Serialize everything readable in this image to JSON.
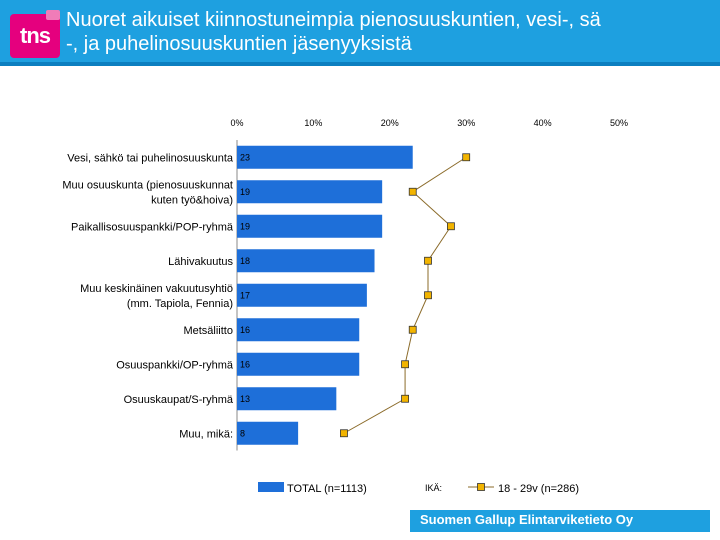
{
  "header": {
    "logo_text": "tns",
    "title": "Nuoret aikuiset kiinnostuneimpia pienosuuskuntien, vesi-, sä\n-, ja puhelinosuuskuntien jäsenyyksistä"
  },
  "footer": {
    "text": "Suomen Gallup Elintarviketieto Oy"
  },
  "colors": {
    "bar": "#1e6fd9",
    "line_marker": "#f2b400",
    "line": "#8b6b2a",
    "header": "#1ea0e0"
  },
  "chart_data": {
    "type": "bar",
    "orientation": "horizontal",
    "title": "",
    "xlabel": "",
    "ylabel": "",
    "xlim": [
      0,
      50
    ],
    "x_ticks": [
      "0%",
      "10%",
      "20%",
      "30%",
      "40%",
      "50%"
    ],
    "categories": [
      "Vesi, sähkö tai puhelinosuuskunta",
      "Muu osuuskunta (pienosuuskunnat kuten työ&hoiva)",
      "Paikallisosuuspankki/POP-ryhmä",
      "Lähivakuutus",
      "Muu keskinäinen vakuutusyhtiö (mm. Tapiola, Fennia)",
      "Metsäliitto",
      "Osuuspankki/OP-ryhmä",
      "Osuuskaupat/S-ryhmä",
      "Muu, mikä:"
    ],
    "category_lines": [
      [
        "Vesi, sähkö tai puhelinosuuskunta"
      ],
      [
        "Muu osuuskunta (pienosuuskunnat",
        "kuten työ&hoiva)"
      ],
      [
        "Paikallisosuuspankki/POP-ryhmä"
      ],
      [
        "Lähivakuutus"
      ],
      [
        "Muu keskinäinen vakuutusyhtiö",
        "(mm. Tapiola, Fennia)"
      ],
      [
        "Metsäliitto"
      ],
      [
        "Osuuspankki/OP-ryhmä"
      ],
      [
        "Osuuskaupat/S-ryhmä"
      ],
      [
        "Muu, mikä:"
      ]
    ],
    "series": [
      {
        "name": "TOTAL (n=1113)",
        "kind": "bar",
        "values": [
          23,
          19,
          19,
          18,
          17,
          16,
          16,
          13,
          8
        ],
        "labels": [
          "23",
          "19",
          "19",
          "18",
          "17",
          "16",
          "16",
          "13",
          "8"
        ]
      },
      {
        "name": "18 - 29v (n=286)",
        "kind": "line",
        "values": [
          30,
          23,
          28,
          25,
          25,
          23,
          22,
          22,
          14
        ]
      }
    ],
    "legend": {
      "bar_label": "TOTAL (n=1113)",
      "age_label": "IKÄ:",
      "line_label": "18 - 29v (n=286)"
    }
  }
}
